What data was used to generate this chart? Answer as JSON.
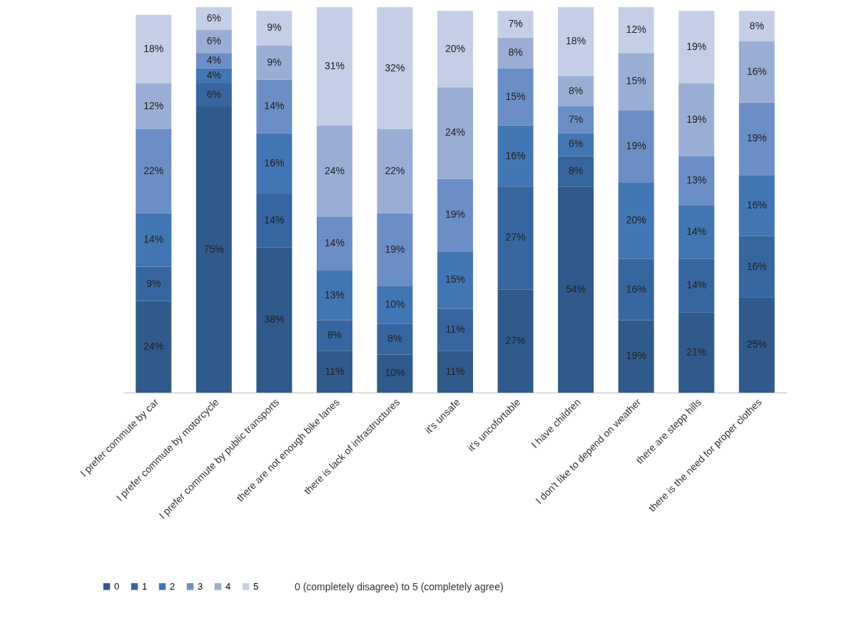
{
  "chart_data": {
    "type": "bar",
    "stacked": true,
    "legend": "bottom left",
    "categories": [
      "I prefer commute by car",
      "I prefer commute by motorcycle",
      "I prefer commute by public transports",
      "there are not enough bike lanes",
      "there is lack of infrastructures",
      "it's unsafe",
      "it's uncofortable",
      "I have children",
      "I don't like to depend on weather",
      "there are stepp hills",
      "there is the need for proper clothes"
    ],
    "series": [
      {
        "name": "0",
        "color": "#2f5a8b",
        "values": [
          24,
          75,
          38,
          11,
          10,
          11,
          27,
          54,
          19,
          21,
          25
        ],
        "value_labels": [
          "24%",
          "75%",
          "38%",
          "11%",
          "10%",
          "11%",
          "27%",
          "54%",
          "19%",
          "21%",
          "25%"
        ]
      },
      {
        "name": "1",
        "color": "#3765a0",
        "values": [
          9,
          6,
          14,
          8,
          8,
          11,
          27,
          8,
          16,
          14,
          16
        ],
        "value_labels": [
          "9%",
          "6%",
          "14%",
          "8%",
          "8%",
          "11%",
          "27%",
          "8%",
          "16%",
          "14%",
          "16%"
        ]
      },
      {
        "name": "2",
        "color": "#4275b3",
        "values": [
          14,
          4,
          16,
          13,
          10,
          15,
          16,
          6,
          20,
          14,
          16
        ],
        "value_labels": [
          "14%",
          "4%",
          "16%",
          "13%",
          "10%",
          "15%",
          "16%",
          "6%",
          "20%",
          "14%",
          "16%"
        ]
      },
      {
        "name": "3",
        "color": "#6b8ec6",
        "values": [
          22,
          4,
          14,
          14,
          19,
          19,
          15,
          7,
          19,
          13,
          19
        ],
        "value_labels": [
          "22%",
          "4%",
          "14%",
          "14%",
          "19%",
          "19%",
          "15%",
          "7%",
          "19%",
          "13%",
          "19%"
        ]
      },
      {
        "name": "4",
        "color": "#9aaed5",
        "values": [
          12,
          6,
          9,
          24,
          22,
          24,
          8,
          8,
          15,
          19,
          16
        ],
        "value_labels": [
          "12%",
          "6%",
          "9%",
          "24%",
          "22%",
          "24%",
          "8%",
          "8%",
          "15%",
          "19%",
          "16%"
        ]
      },
      {
        "name": "5",
        "color": "#c4cee6",
        "values": [
          18,
          6,
          9,
          31,
          32,
          20,
          7,
          18,
          12,
          19,
          8
        ],
        "value_labels": [
          "18%",
          "6%",
          "9%",
          "31%",
          "32%",
          "20%",
          "7%",
          "18%",
          "12%",
          "19%",
          "8%"
        ]
      }
    ],
    "annotations": [
      "0 (completely disagree) to 5 (completely agree)"
    ]
  }
}
